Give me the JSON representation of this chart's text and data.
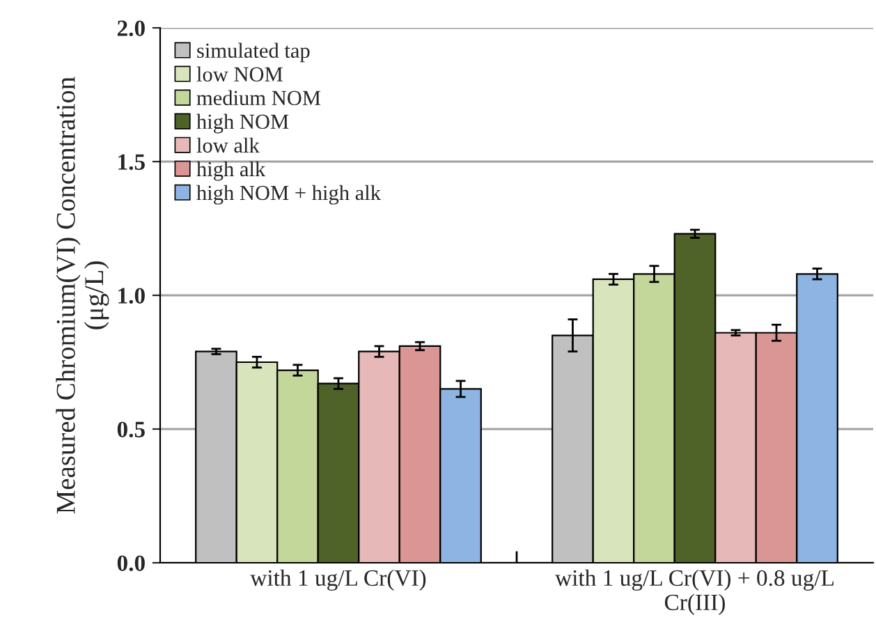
{
  "chart_data": {
    "type": "bar",
    "ylabel": "Measured Chromium(VI) Concentration\n(μg/L)",
    "categories": [
      "with 1 ug/L Cr(VI)",
      "with 1 ug/L Cr(VI) + 0.8 ug/L\nCr(III)"
    ],
    "series": [
      {
        "name": "simulated tap",
        "color": "#c0c0c0",
        "values": [
          0.79,
          0.85
        ],
        "errors": [
          0.01,
          0.06
        ]
      },
      {
        "name": "low NOM",
        "color": "#d8e4bc",
        "values": [
          0.75,
          1.06
        ],
        "errors": [
          0.02,
          0.02
        ]
      },
      {
        "name": "medium NOM",
        "color": "#c4d79b",
        "values": [
          0.72,
          1.08
        ],
        "errors": [
          0.02,
          0.03
        ]
      },
      {
        "name": "high NOM",
        "color": "#4f6228",
        "values": [
          0.67,
          1.23
        ],
        "errors": [
          0.02,
          0.015
        ]
      },
      {
        "name": "low alk",
        "color": "#e6b8b7",
        "values": [
          0.79,
          0.86
        ],
        "errors": [
          0.02,
          0.01
        ]
      },
      {
        "name": "high alk",
        "color": "#da9694",
        "values": [
          0.81,
          0.86
        ],
        "errors": [
          0.015,
          0.03
        ]
      },
      {
        "name": "high NOM + high alk",
        "color": "#8db4e2",
        "values": [
          0.65,
          1.08
        ],
        "errors": [
          0.03,
          0.02
        ]
      }
    ],
    "ylim": [
      0,
      2.0
    ],
    "yticks": [
      {
        "value": 0,
        "label": "0.0"
      },
      {
        "value": 0.5,
        "label": "0.5"
      },
      {
        "value": 1.0,
        "label": "1.0"
      },
      {
        "value": 1.5,
        "label": "1.5"
      },
      {
        "value": 2.0,
        "label": "2.0"
      }
    ],
    "grid": "y",
    "legend": "top left"
  }
}
